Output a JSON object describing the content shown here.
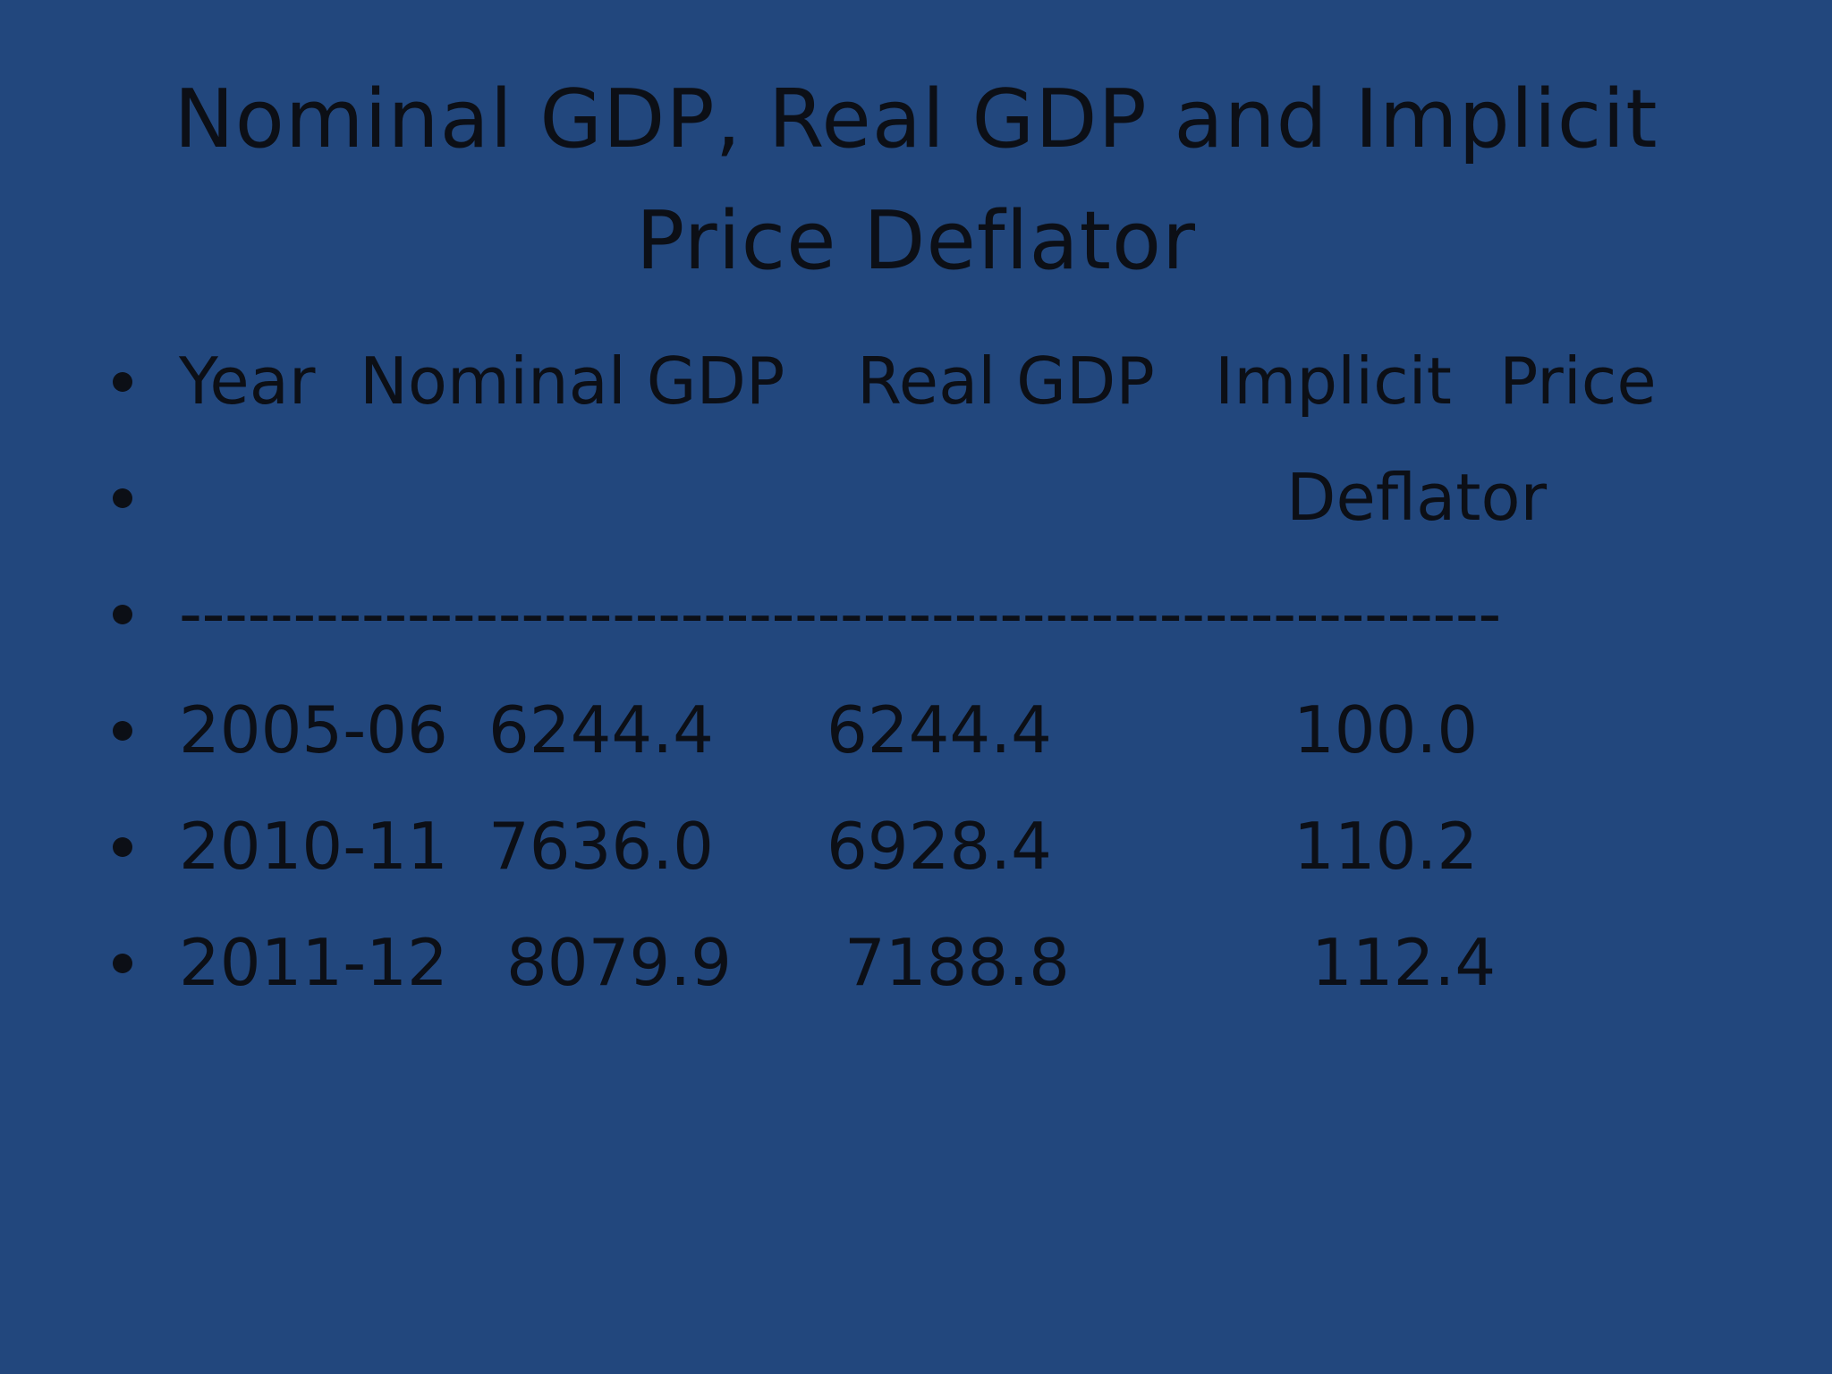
{
  "slide": {
    "title_line1": "Nominal GDP, Real GDP and Implicit",
    "title_line2": "Price Deflator",
    "header": {
      "year": "Year",
      "nominal": "Nominal GDP",
      "real": "Real GDP",
      "implicit": "Implicit",
      "price": "Price",
      "deflator": "Deflator"
    },
    "separator": "----------------------------------------------------------",
    "rows": [
      {
        "year": "2005-06",
        "nominal": "6244.4",
        "real": "6244.4",
        "deflator": "100.0"
      },
      {
        "year": "2010-11",
        "nominal": "7636.0",
        "real": "6928.4",
        "deflator": "110.2"
      },
      {
        "year": "2011-12",
        "nominal": "8079.9",
        "real": "7188.8",
        "deflator": "112.4"
      }
    ]
  },
  "colors": {
    "background": "#22477d",
    "text": "#0c0f16"
  }
}
